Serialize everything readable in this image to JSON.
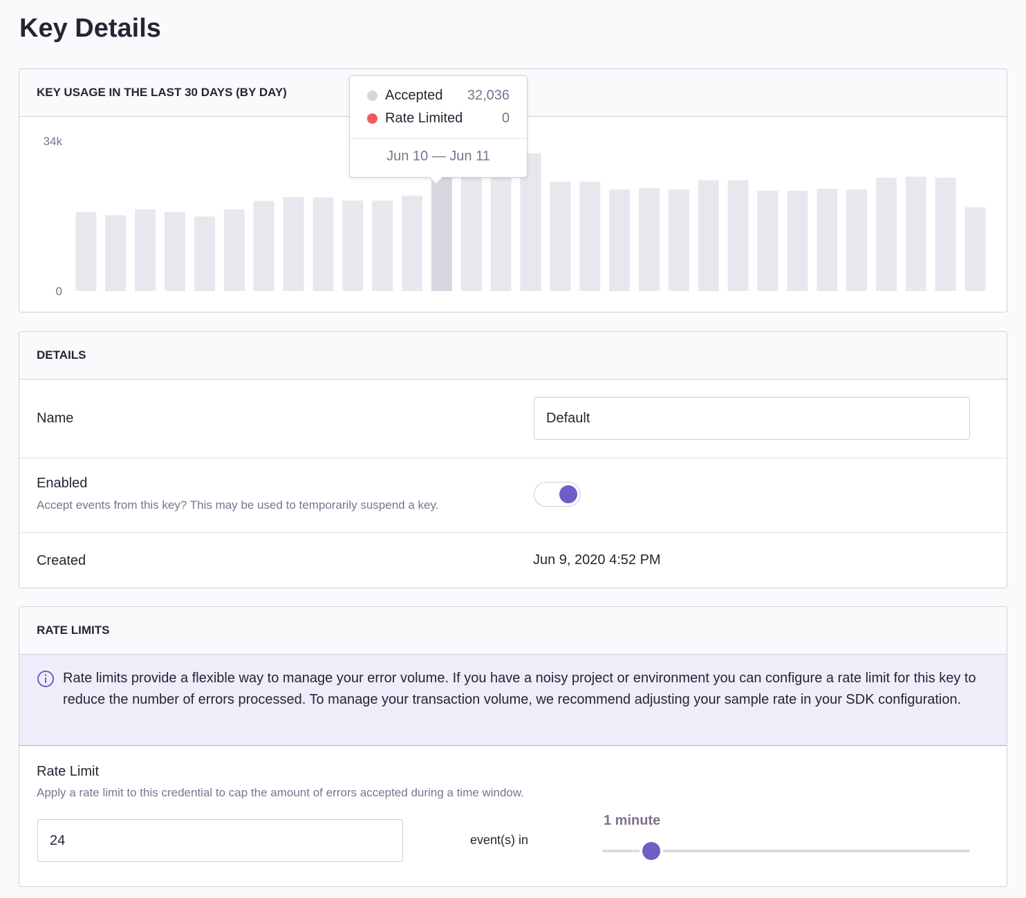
{
  "header": {
    "title": "Key Details"
  },
  "usage": {
    "title": "KEY USAGE IN THE LAST 30 DAYS (BY DAY)",
    "chart_data": {
      "type": "bar",
      "categories": [
        null,
        null,
        null,
        null,
        null,
        null,
        null,
        null,
        null,
        null,
        null,
        null,
        null,
        null,
        null,
        null,
        null,
        null,
        null,
        null,
        null,
        null,
        null,
        null,
        null,
        null,
        null,
        null,
        null,
        null,
        null
      ],
      "values": [
        17900,
        17200,
        18500,
        17900,
        16900,
        18500,
        20400,
        21300,
        21200,
        20500,
        20500,
        21600,
        32036,
        31000,
        31500,
        31200,
        24800,
        24800,
        23000,
        23300,
        23000,
        25100,
        25100,
        22700,
        22700,
        23200,
        23000,
        25700,
        25900,
        25700,
        19000
      ],
      "color": "#e9e6ee",
      "highlight_color": "#dad6e0",
      "highlight_index": 12,
      "ylim": [
        0,
        34000
      ],
      "yticks": [
        0,
        {
          "value": 34000,
          "label": "34k"
        }
      ],
      "grid": false
    },
    "tooltip": {
      "items": [
        {
          "name": "Accepted",
          "color": "#d8d5de",
          "value": "32,036"
        },
        {
          "name": "Rate Limited",
          "color": "#f05a5c",
          "value": "0"
        }
      ],
      "range": "Jun 10 — Jun 11"
    }
  },
  "details": {
    "title": "DETAILS",
    "rows": [
      {
        "label": "Name",
        "value": "Default"
      },
      {
        "label": "Enabled",
        "help": "Accept events from this key? This may be used to temporarily suspend a key.",
        "enabled": true
      },
      {
        "label": "Created",
        "value": "Jun 9, 2020 4:52 PM"
      }
    ]
  },
  "rate_limits": {
    "title": "RATE LIMITS",
    "alert": "Rate limits provide a flexible way to manage your error volume. If you have a noisy project or environment you can configure a rate limit for this key to reduce the number of errors processed. To manage your transaction volume, we recommend adjusting your sample rate in your SDK configuration.",
    "label": "Rate Limit",
    "help": "Apply a rate limit to this credential to cap the amount of errors accepted during a time window.",
    "count": "24",
    "unit_text": "event(s) in",
    "window": "1 minute"
  }
}
